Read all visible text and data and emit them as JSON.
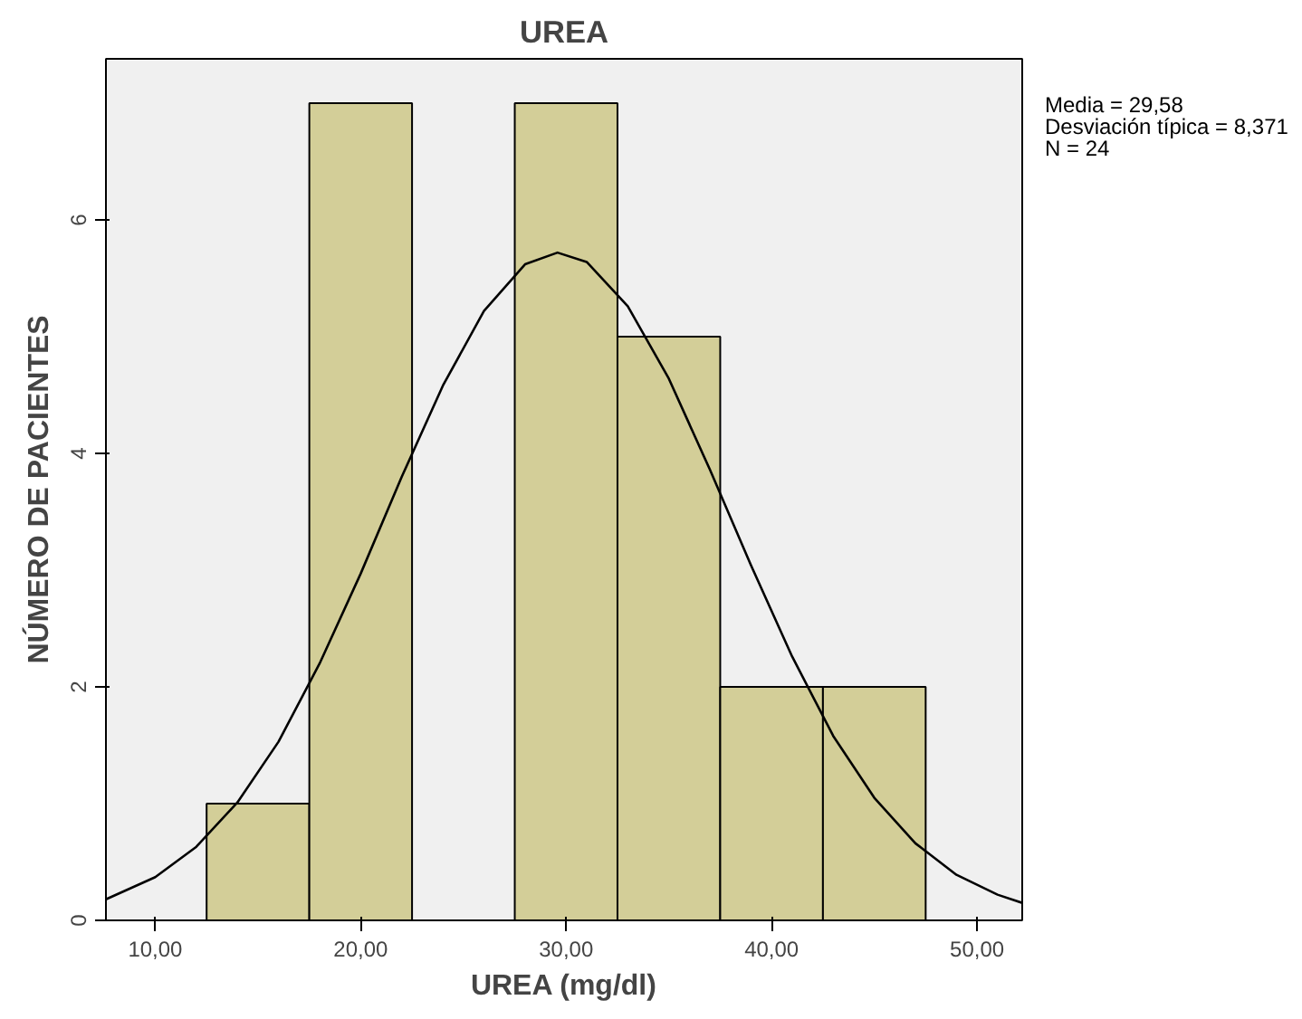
{
  "chart_data": {
    "type": "histogram",
    "title": "UREA",
    "xlabel": "UREA (mg/dl)",
    "ylabel": "NÚMERO DE PACIENTES",
    "bins": [
      12.5,
      17.5,
      22.5,
      27.5,
      32.5,
      37.5,
      42.5,
      47.5
    ],
    "values": [
      1,
      7,
      0,
      7,
      5,
      2,
      2
    ],
    "color": "#d3ce98",
    "series": [
      {
        "type": "line",
        "color": "#000000",
        "x": [
          7.6,
          10,
          12,
          14,
          16,
          18,
          20,
          22,
          24,
          26,
          28,
          29.58,
          31,
          33,
          35,
          37,
          39,
          41,
          43,
          45,
          47,
          49,
          51,
          52.2
        ],
        "values": [
          0.18,
          0.37,
          0.63,
          1.01,
          1.53,
          2.2,
          2.97,
          3.8,
          4.58,
          5.22,
          5.62,
          5.72,
          5.64,
          5.26,
          4.64,
          3.86,
          3.04,
          2.26,
          1.58,
          1.05,
          0.66,
          0.39,
          0.22,
          0.15
        ]
      }
    ],
    "xlim": [
      7.6,
      52.2
    ],
    "ylim": [
      0,
      7.38
    ],
    "xticks": [
      {
        "value": 10,
        "label": "10,00"
      },
      {
        "value": 20,
        "label": "20,00"
      },
      {
        "value": 30,
        "label": "30,00"
      },
      {
        "value": 40,
        "label": "40,00"
      },
      {
        "value": 50,
        "label": "50,00"
      }
    ],
    "yticks": [
      0,
      2,
      4,
      6
    ],
    "grid": false,
    "annotations": [
      "Media = 29,58",
      "Desviación típica = 8,371",
      "N = 24"
    ]
  }
}
